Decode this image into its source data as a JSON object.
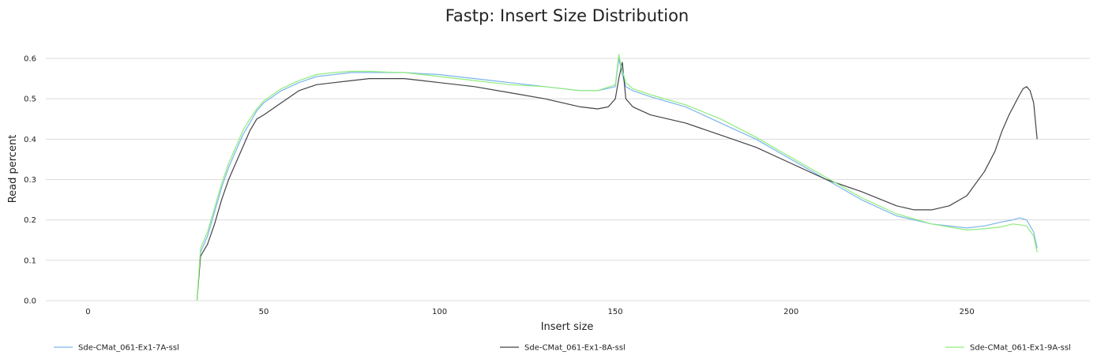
{
  "chart_data": {
    "type": "line",
    "title": "Fastp: Insert Size Distribution",
    "xlabel": "Insert size",
    "ylabel": "Read percent",
    "xlim": [
      -12,
      285
    ],
    "ylim": [
      0,
      0.6
    ],
    "xticks": [
      0,
      50,
      100,
      150,
      200,
      250
    ],
    "yticks": [
      0.0,
      0.1,
      0.2,
      0.3,
      0.4,
      0.5,
      0.6
    ],
    "xtick_labels": [
      "0",
      "50",
      "100",
      "150",
      "200",
      "250"
    ],
    "ytick_labels": [
      "0.0",
      "0.1",
      "0.2",
      "0.3",
      "0.4",
      "0.5",
      "0.6"
    ],
    "grid": true,
    "legend_position": "bottom",
    "series": [
      {
        "name": "Sde-CMat_061-Ex1-7A-ssl",
        "color": "#7cb5ec",
        "x": [
          31,
          32,
          34,
          36,
          38,
          40,
          42,
          44,
          46,
          48,
          50,
          55,
          60,
          65,
          70,
          75,
          80,
          85,
          90,
          95,
          100,
          110,
          120,
          130,
          140,
          145,
          150,
          151,
          152,
          153,
          155,
          160,
          170,
          180,
          190,
          200,
          210,
          220,
          230,
          240,
          250,
          255,
          260,
          263,
          265,
          267,
          269,
          270
        ],
        "values": [
          0.0,
          0.12,
          0.16,
          0.22,
          0.28,
          0.33,
          0.37,
          0.41,
          0.44,
          0.47,
          0.49,
          0.52,
          0.54,
          0.555,
          0.56,
          0.565,
          0.565,
          0.565,
          0.565,
          0.562,
          0.56,
          0.55,
          0.54,
          0.53,
          0.52,
          0.52,
          0.53,
          0.6,
          0.56,
          0.53,
          0.52,
          0.505,
          0.48,
          0.44,
          0.4,
          0.35,
          0.3,
          0.25,
          0.21,
          0.19,
          0.18,
          0.185,
          0.195,
          0.2,
          0.205,
          0.2,
          0.17,
          0.13
        ]
      },
      {
        "name": "Sde-CMat_061-Ex1-8A-ssl",
        "color": "#434348",
        "x": [
          31,
          32,
          34,
          36,
          38,
          40,
          42,
          44,
          46,
          48,
          50,
          55,
          60,
          65,
          70,
          75,
          80,
          85,
          90,
          95,
          100,
          110,
          120,
          130,
          140,
          145,
          148,
          150,
          151,
          152,
          153,
          155,
          160,
          170,
          180,
          190,
          200,
          210,
          220,
          230,
          235,
          240,
          245,
          250,
          255,
          258,
          260,
          262,
          265,
          266,
          267,
          268,
          269,
          270
        ],
        "values": [
          0.0,
          0.11,
          0.14,
          0.19,
          0.25,
          0.3,
          0.34,
          0.38,
          0.42,
          0.45,
          0.46,
          0.49,
          0.52,
          0.535,
          0.54,
          0.545,
          0.55,
          0.55,
          0.55,
          0.545,
          0.54,
          0.53,
          0.515,
          0.5,
          0.48,
          0.475,
          0.48,
          0.5,
          0.55,
          0.59,
          0.5,
          0.48,
          0.46,
          0.44,
          0.41,
          0.38,
          0.34,
          0.3,
          0.27,
          0.235,
          0.225,
          0.225,
          0.235,
          0.26,
          0.32,
          0.37,
          0.42,
          0.46,
          0.51,
          0.525,
          0.53,
          0.52,
          0.49,
          0.4
        ]
      },
      {
        "name": "Sde-CMat_061-Ex1-9A-ssl",
        "color": "#90ed7d",
        "x": [
          31,
          32,
          34,
          36,
          38,
          40,
          42,
          44,
          46,
          48,
          50,
          55,
          60,
          65,
          70,
          75,
          80,
          85,
          90,
          95,
          100,
          110,
          120,
          130,
          140,
          145,
          150,
          151,
          152,
          153,
          155,
          160,
          170,
          180,
          190,
          200,
          210,
          220,
          230,
          240,
          250,
          255,
          260,
          263,
          265,
          267,
          269,
          270
        ],
        "values": [
          0.0,
          0.13,
          0.17,
          0.23,
          0.29,
          0.34,
          0.38,
          0.42,
          0.45,
          0.475,
          0.495,
          0.525,
          0.545,
          0.56,
          0.565,
          0.568,
          0.568,
          0.566,
          0.565,
          0.56,
          0.555,
          0.545,
          0.535,
          0.53,
          0.52,
          0.52,
          0.535,
          0.61,
          0.57,
          0.54,
          0.525,
          0.51,
          0.485,
          0.45,
          0.405,
          0.355,
          0.305,
          0.255,
          0.215,
          0.19,
          0.175,
          0.178,
          0.183,
          0.19,
          0.188,
          0.185,
          0.16,
          0.12
        ]
      }
    ]
  }
}
